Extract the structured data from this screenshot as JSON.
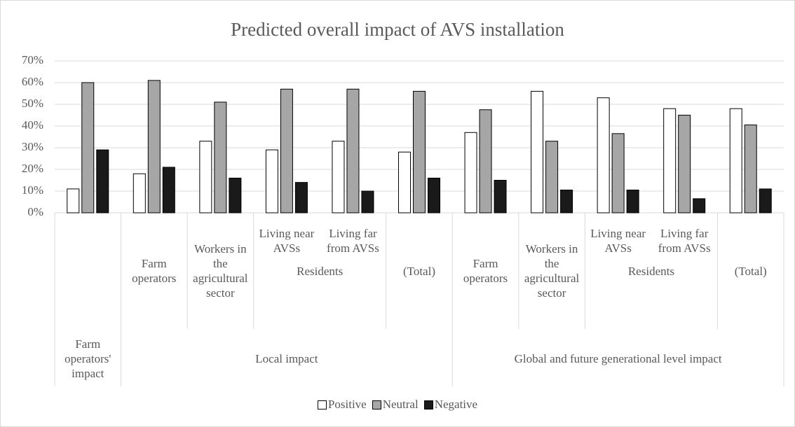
{
  "chart_data": {
    "type": "bar",
    "title": "Predicted overall impact of AVS installation",
    "groups": [
      {
        "name": "Farm operators' impact",
        "categories": [
          null
        ]
      },
      {
        "name": "Local impact",
        "categories": [
          "Farm operators",
          "Workers in the agricultural sector",
          {
            "name": "Residents",
            "categories": [
              "Living near AVSs",
              "Living far from AVSs"
            ]
          },
          "(Total)"
        ]
      },
      {
        "name": "Global and future generational level impact",
        "categories": [
          "Farm operators",
          "Workers in the agricultural sector",
          {
            "name": "Residents",
            "categories": [
              "Living near AVSs",
              "Living far from AVSs"
            ]
          },
          "(Total)"
        ]
      }
    ],
    "series": [
      {
        "name": "Positive",
        "color": "#ffffff",
        "values": [
          11,
          18,
          33,
          29,
          33,
          28,
          37,
          56,
          53,
          48,
          48
        ]
      },
      {
        "name": "Neutral",
        "color": "#a6a6a6",
        "values": [
          60,
          61,
          51,
          57,
          57,
          56,
          47.5,
          33,
          36.5,
          45,
          40.5
        ]
      },
      {
        "name": "Negative",
        "color": "#1a1a1a",
        "values": [
          29,
          21,
          16,
          14,
          10,
          16,
          15,
          10.5,
          10.5,
          6.5,
          11
        ]
      }
    ],
    "ylim": [
      0,
      70
    ],
    "yticks": [
      {
        "value": 0,
        "label": "0%"
      },
      {
        "value": 10,
        "label": "10%"
      },
      {
        "value": 20,
        "label": "20%"
      },
      {
        "value": 30,
        "label": "30%"
      },
      {
        "value": 40,
        "label": "40%"
      },
      {
        "value": 50,
        "label": "50%"
      },
      {
        "value": 60,
        "label": "60%"
      },
      {
        "value": 70,
        "label": "70%"
      }
    ],
    "grid": true,
    "legend": "bottom"
  }
}
